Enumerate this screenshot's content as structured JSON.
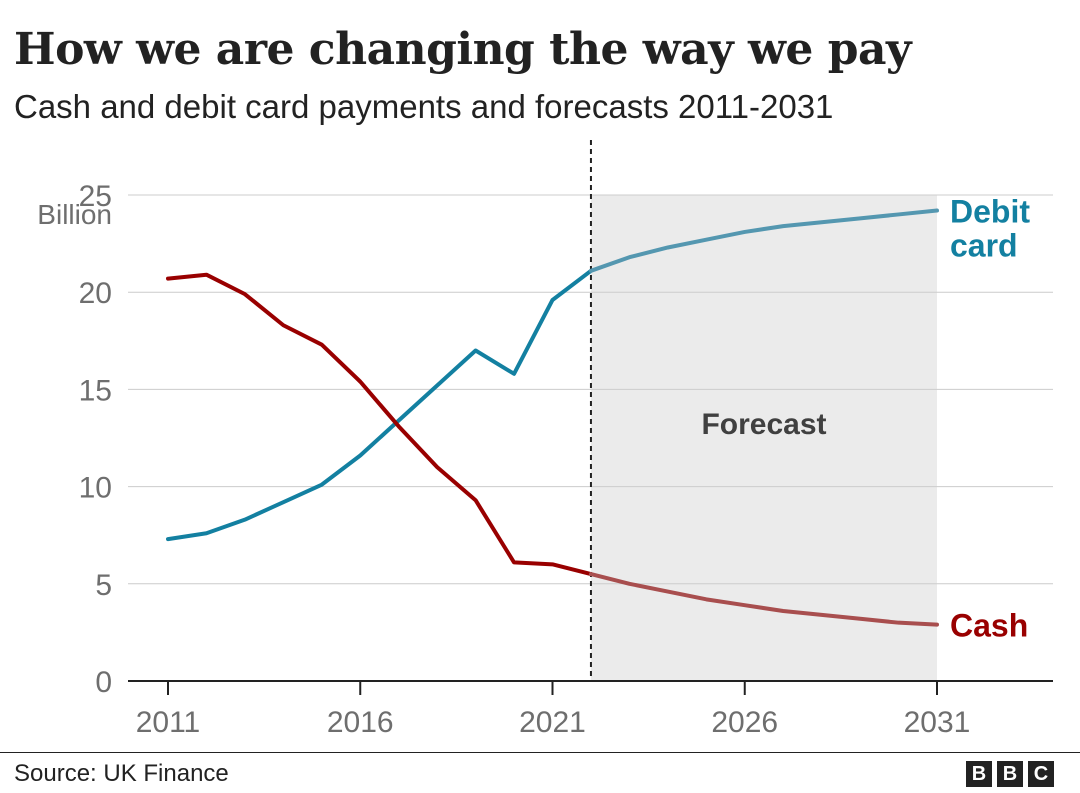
{
  "chart_data": {
    "type": "line",
    "title": "How we are changing the way we pay",
    "subtitle": "Cash and debit card payments and forecasts 2011-2031",
    "ylabel": "Billion",
    "xlabel": "",
    "xlim": [
      2011,
      2031
    ],
    "ylim": [
      0,
      25
    ],
    "x_ticks": [
      "2011",
      "2016",
      "2021",
      "2026",
      "2031"
    ],
    "y_ticks": [
      "0",
      "5",
      "10",
      "15",
      "20",
      "25"
    ],
    "grid": true,
    "forecast_start": 2022,
    "forecast_label": "Forecast",
    "x": [
      2011,
      2012,
      2013,
      2014,
      2015,
      2016,
      2017,
      2018,
      2019,
      2020,
      2021,
      2022,
      2023,
      2024,
      2025,
      2026,
      2027,
      2028,
      2029,
      2030,
      2031
    ],
    "series": [
      {
        "name": "Debit card",
        "label_lines": [
          "Debit",
          "card"
        ],
        "color": "#1380A1",
        "forecast_color": "#5497B0",
        "values": [
          7.3,
          7.6,
          8.3,
          9.2,
          10.1,
          11.6,
          13.4,
          15.2,
          17.0,
          15.8,
          19.6,
          21.1,
          21.8,
          22.3,
          22.7,
          23.1,
          23.4,
          23.6,
          23.8,
          24.0,
          24.2
        ]
      },
      {
        "name": "Cash",
        "label_lines": [
          "Cash"
        ],
        "color": "#990000",
        "forecast_color": "#A84E4E",
        "values": [
          20.7,
          20.9,
          19.9,
          18.3,
          17.3,
          15.4,
          13.1,
          11.0,
          9.3,
          6.1,
          6.0,
          5.5,
          5.0,
          4.6,
          4.2,
          3.9,
          3.6,
          3.4,
          3.2,
          3.0,
          2.9
        ]
      }
    ]
  },
  "footer": {
    "source": "Source: UK Finance",
    "logo_letters": [
      "B",
      "B",
      "C"
    ]
  }
}
